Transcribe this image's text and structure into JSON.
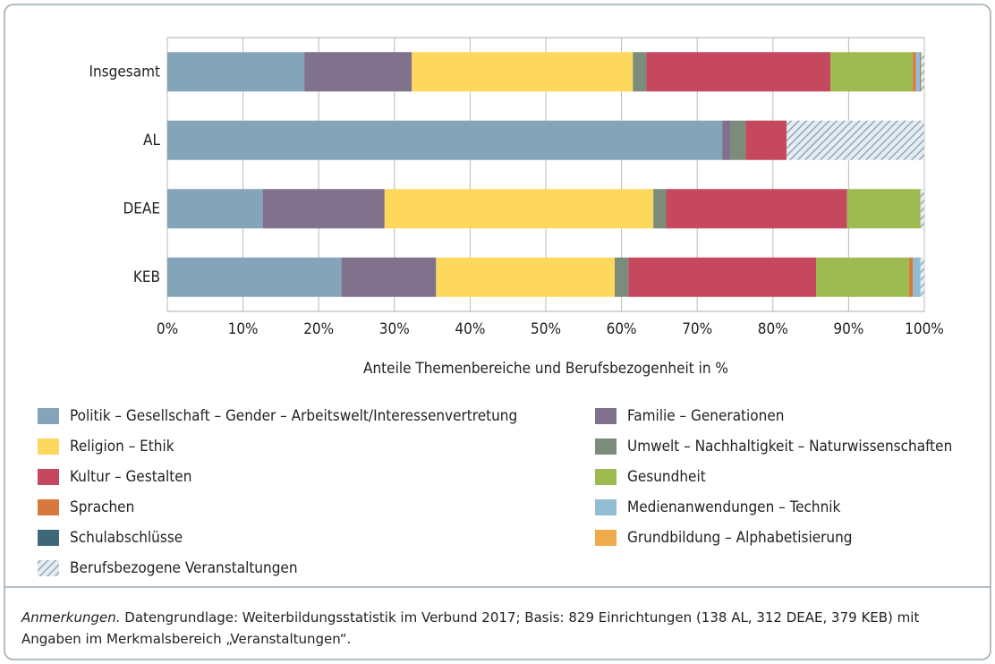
{
  "chart_data": {
    "type": "stacked_barh",
    "categories": [
      "Insgesamt",
      "AL",
      "DEAE",
      "KEB"
    ],
    "series": [
      {
        "name": "Politik – Gesellschaft – Gender – Arbeitswelt/Interessenvertretung",
        "color": "#84a5b9",
        "values": [
          18.1,
          73.3,
          12.6,
          23.0
        ]
      },
      {
        "name": "Familie – Generationen",
        "color": "#80718c",
        "values": [
          14.2,
          1.1,
          16.1,
          12.5
        ]
      },
      {
        "name": "Religion – Ethik",
        "color": "#fdd85d",
        "values": [
          29.2,
          0,
          35.5,
          23.6
        ]
      },
      {
        "name": "Umwelt – Nachhaltigkeit – Naturwissenschaften",
        "color": "#7b8c7b",
        "values": [
          1.8,
          2.0,
          1.7,
          1.8
        ]
      },
      {
        "name": "Kultur – Gestalten",
        "color": "#c5485f",
        "values": [
          24.3,
          5.4,
          23.9,
          24.8
        ]
      },
      {
        "name": "Gesundheit",
        "color": "#9dbb50",
        "values": [
          10.9,
          0,
          9.7,
          12.3
        ]
      },
      {
        "name": "Sprachen",
        "color": "#d8783f",
        "values": [
          0.4,
          0,
          0,
          0.5
        ]
      },
      {
        "name": "Medienanwendungen – Technik",
        "color": "#92bcd3",
        "values": [
          0.5,
          0,
          0,
          1.0
        ]
      },
      {
        "name": "Schulabschlüsse",
        "color": "#3e6777",
        "values": [
          0.1,
          0,
          0,
          0
        ]
      },
      {
        "name": "Grundbildung – Alphabetisierung",
        "color": "#eeab4b",
        "values": [
          0.1,
          0,
          0,
          0
        ]
      },
      {
        "name": "Berufsbezogene Veranstaltungen",
        "color": "#8fa9bd",
        "hatch": true,
        "values": [
          0.4,
          18.2,
          0.5,
          0.5
        ]
      }
    ],
    "xlim": [
      0,
      100
    ],
    "xticks": [
      {
        "value": 0,
        "label": "0%"
      },
      {
        "value": 10,
        "label": "10%"
      },
      {
        "value": 20,
        "label": "20%"
      },
      {
        "value": 30,
        "label": "30%"
      },
      {
        "value": 40,
        "label": "40%"
      },
      {
        "value": 50,
        "label": "50%"
      },
      {
        "value": 60,
        "label": "60%"
      },
      {
        "value": 70,
        "label": "70%"
      },
      {
        "value": 80,
        "label": "80%"
      },
      {
        "value": 90,
        "label": "90%"
      },
      {
        "value": 100,
        "label": "100%"
      }
    ],
    "xlabel": "Anteile Themenbereiche und Berufsbezogenheit in %",
    "grid": true,
    "note_label": "Anmerkungen.",
    "note_text": "Datengrundlage: Weiterbildungsstatistik im Verbund 2017; Basis: 829 Einrichtungen (138 AL, 312 DEAE, 379 KEB) mit Angaben im Merkmalsbereich „Veranstaltungen“."
  }
}
